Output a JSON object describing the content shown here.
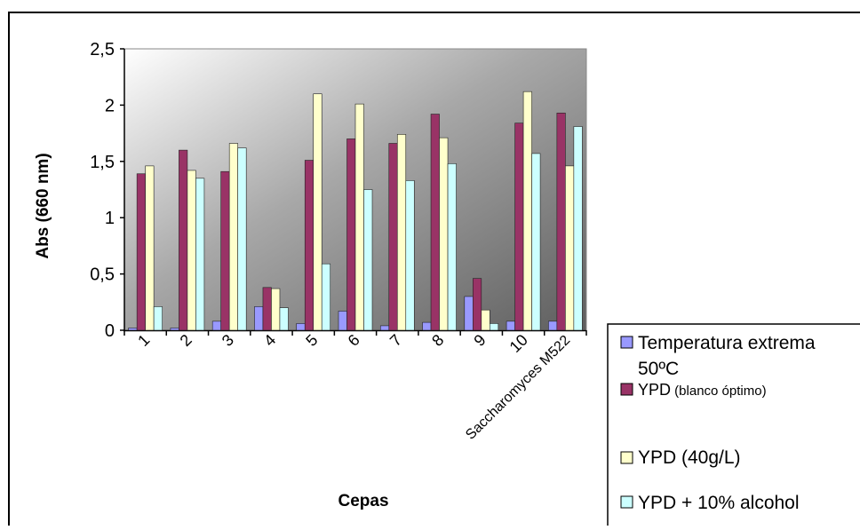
{
  "chart_data": {
    "type": "bar",
    "title": "",
    "xlabel": "Cepas",
    "ylabel": "Abs (660 nm)",
    "ylim": [
      0,
      2.5
    ],
    "yticks": [
      "0",
      "0,5",
      "1",
      "1,5",
      "2",
      "2,5"
    ],
    "categories": [
      "1",
      "2",
      "3",
      "4",
      "5",
      "6",
      "7",
      "8",
      "9",
      "10",
      "Saccharomyces M522"
    ],
    "grid": false,
    "legend_position": "bottom-right",
    "series": [
      {
        "name": "Temperatura extrema 50ºC",
        "name_line1": "Temperatura extrema",
        "name_line2": "50ºC",
        "color": "#9999ff",
        "values": [
          0.02,
          0.02,
          0.08,
          0.21,
          0.06,
          0.17,
          0.04,
          0.07,
          0.3,
          0.08,
          0.08
        ]
      },
      {
        "name": "YPD (blanco óptimo)",
        "name_main": "YPD",
        "name_note": " (blanco óptimo)",
        "color": "#993366",
        "values": [
          1.39,
          1.6,
          1.41,
          0.38,
          1.51,
          1.7,
          1.66,
          1.92,
          0.46,
          1.84,
          1.93
        ]
      },
      {
        "name": "YPD (40g/L)",
        "color": "#ffffcc",
        "values": [
          1.46,
          1.42,
          1.66,
          0.37,
          2.1,
          2.01,
          1.74,
          1.71,
          0.18,
          2.12,
          1.46
        ]
      },
      {
        "name": "YPD + 10% alcohol",
        "color": "#ccffff",
        "values": [
          0.21,
          1.35,
          1.62,
          0.2,
          0.59,
          1.25,
          1.33,
          1.48,
          0.06,
          1.57,
          1.81
        ]
      }
    ]
  }
}
